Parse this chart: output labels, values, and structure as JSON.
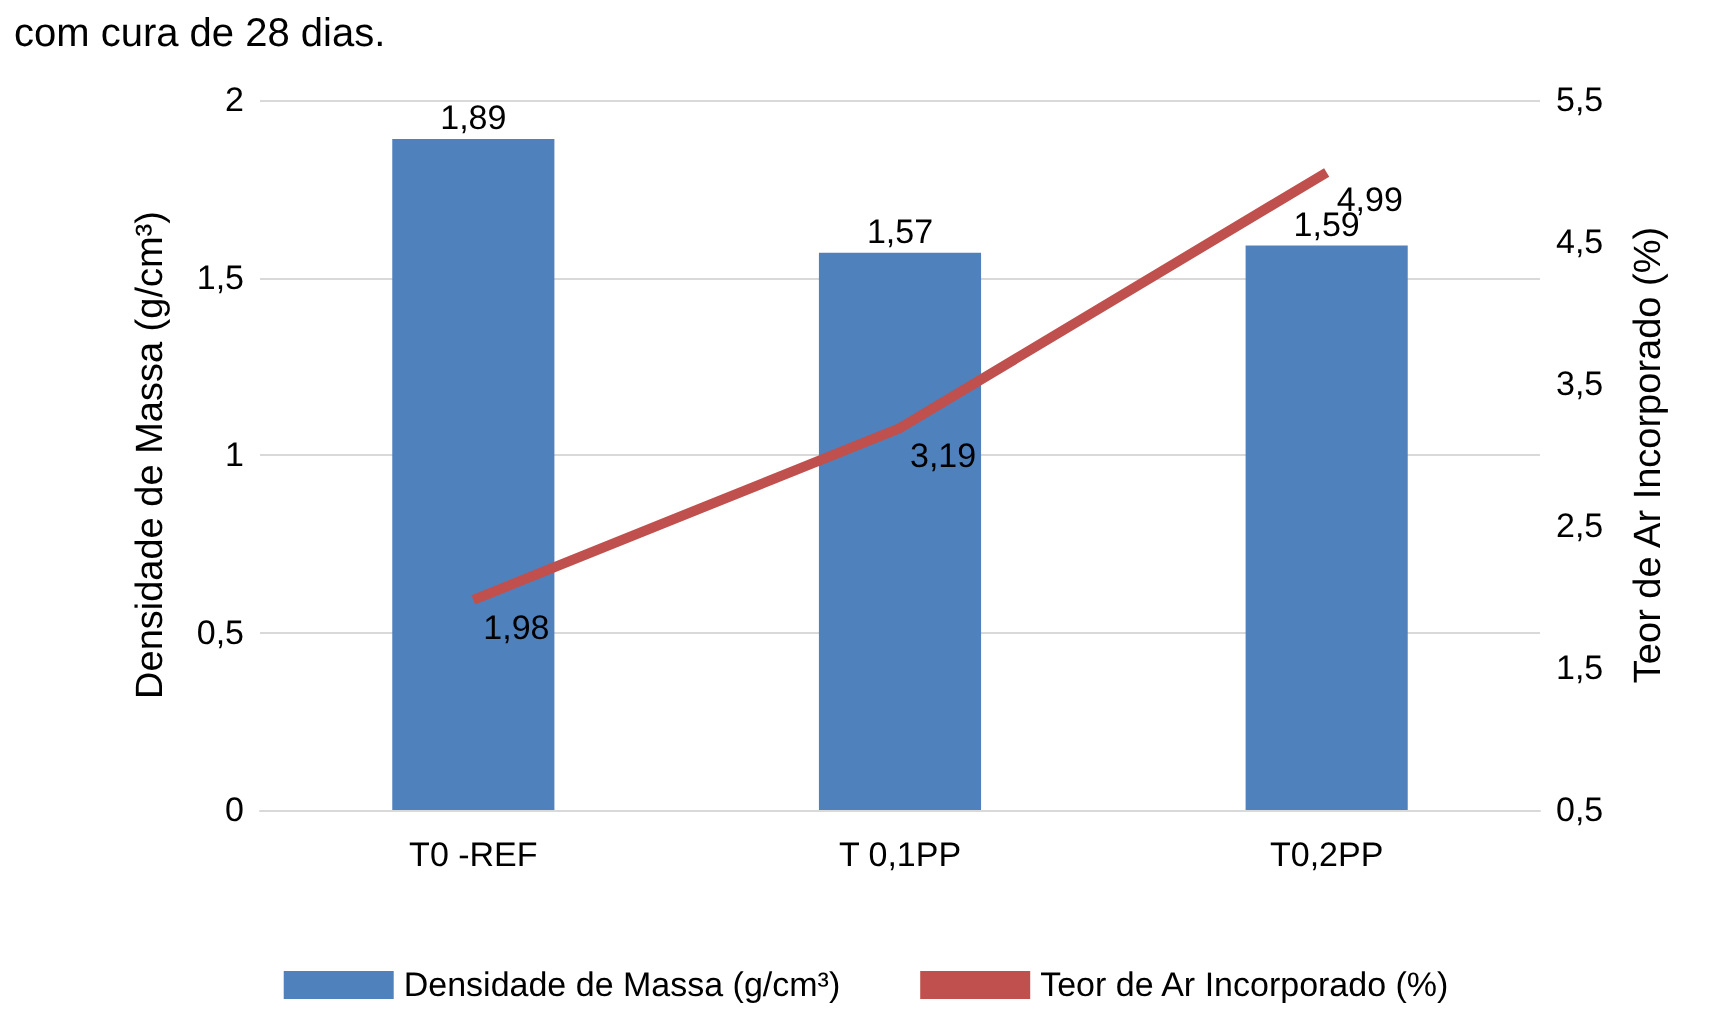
{
  "chart_data": {
    "type": "bar",
    "title": "com cura de 28 dias.",
    "categories": [
      "T0 -REF",
      "T 0,1PP",
      "T0,2PP"
    ],
    "ylabel": "Densidade de Massa (g/cm³)",
    "y2label": "Teor de Ar Incorporado (%)",
    "series": [
      {
        "name": "Densidade de Massa (g/cm³)",
        "color": "#4f81bd",
        "values": [
          1.89,
          1.57,
          1.59
        ],
        "value_labels": [
          "1,89",
          "1,57",
          "1,59"
        ]
      },
      {
        "name": "Teor de Ar Incorporado (%)",
        "type": "line",
        "axis": "y2",
        "color": "#c0504d",
        "values": [
          1.98,
          3.19,
          4.99
        ],
        "value_labels": [
          "1,98",
          "3,19",
          "4,99"
        ]
      }
    ],
    "ylim": [
      0,
      2
    ],
    "yticks": [
      0,
      {
        "value": 0.5,
        "label": "0,5"
      },
      1,
      {
        "value": 1.5,
        "label": "1,5"
      },
      2
    ],
    "y2lim": [
      0.5,
      5.5
    ],
    "y2ticks": [
      {
        "value": 0.5,
        "label": "0,5"
      },
      {
        "value": 1.5,
        "label": "1,5"
      },
      {
        "value": 2.5,
        "label": "2,5"
      },
      {
        "value": 3.5,
        "label": "3,5"
      },
      {
        "value": 4.5,
        "label": "4,5"
      },
      {
        "value": 5.5,
        "label": "5,5"
      }
    ],
    "grid": "y",
    "legend": "bottom",
    "marker": "none"
  }
}
